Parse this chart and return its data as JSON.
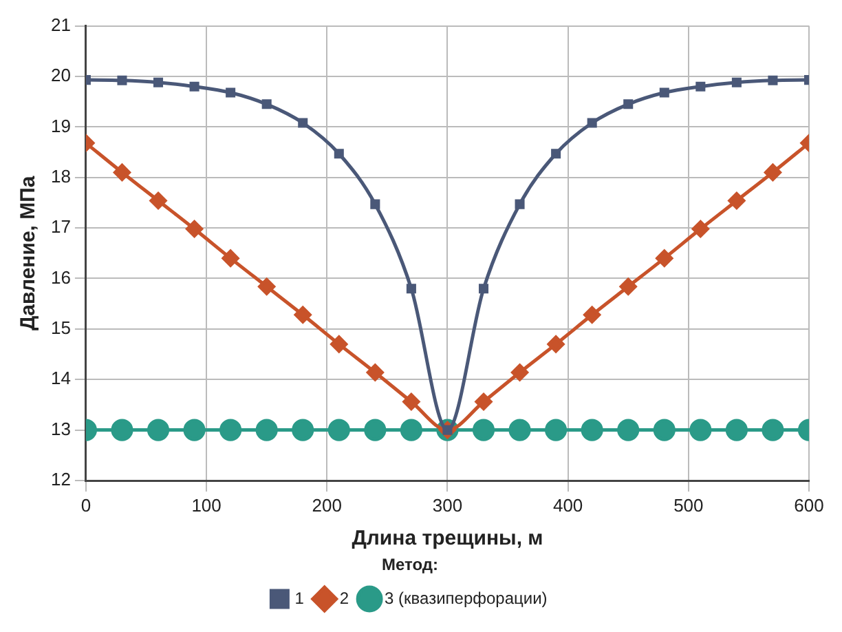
{
  "chart_data": {
    "type": "line",
    "xlabel": "Длина трещины, м",
    "ylabel": "Давление, МПа",
    "legend_title": "Метод:",
    "legend": "bottom",
    "grid": true,
    "x": [
      0,
      30,
      60,
      90,
      120,
      150,
      180,
      210,
      240,
      270,
      300,
      330,
      360,
      390,
      420,
      450,
      480,
      510,
      540,
      570,
      600
    ],
    "xlim": [
      0,
      600
    ],
    "xticks": [
      0,
      100,
      200,
      300,
      400,
      500,
      600
    ],
    "ylim": [
      12,
      21
    ],
    "yticks": [
      12,
      13,
      14,
      15,
      16,
      17,
      18,
      19,
      20,
      21
    ],
    "series": [
      {
        "name": "1",
        "color": "#4a5878",
        "marker": "square",
        "values": [
          19.93,
          19.92,
          19.88,
          19.8,
          19.68,
          19.45,
          19.08,
          18.47,
          17.47,
          15.8,
          13,
          15.8,
          17.47,
          18.47,
          19.08,
          19.45,
          19.68,
          19.8,
          19.88,
          19.92,
          19.93
        ]
      },
      {
        "name": "2",
        "color": "#c8532a",
        "marker": "diamond",
        "values": [
          18.68,
          18.1,
          17.54,
          16.98,
          16.4,
          15.84,
          15.28,
          14.7,
          14.14,
          13.56,
          13,
          13.56,
          14.14,
          14.7,
          15.28,
          15.84,
          16.4,
          16.98,
          17.54,
          18.1,
          18.68
        ]
      },
      {
        "name": "3 (квазиперфорации)",
        "color": "#2a9a88",
        "marker": "circle",
        "values": [
          13,
          13,
          13,
          13,
          13,
          13,
          13,
          13,
          13,
          13,
          13,
          13,
          13,
          13,
          13,
          13,
          13,
          13,
          13,
          13,
          13
        ]
      }
    ]
  }
}
